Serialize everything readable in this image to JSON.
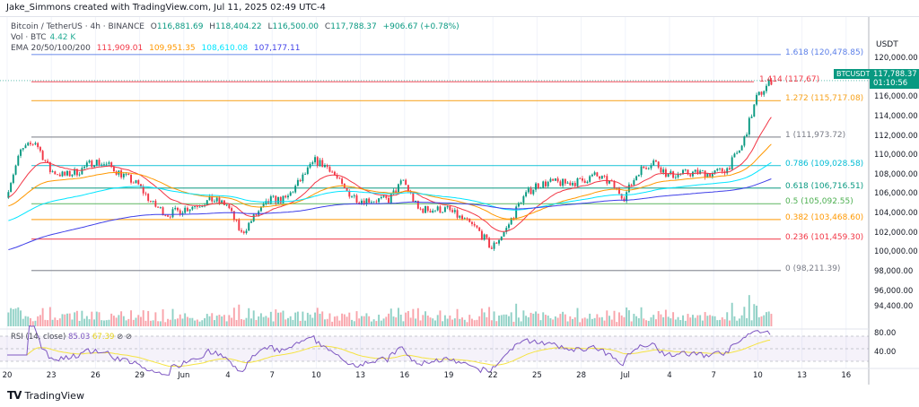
{
  "credit": "Jake_Simmons created with TradingView.com, Jul 11, 2025 02:49 UTC-4",
  "legend": {
    "symbol": "Bitcoin / TetherUS · 4h · BINANCE",
    "open_label": "O",
    "open": "116,881.69",
    "high_label": "H",
    "high": "118,404.22",
    "low_label": "L",
    "low": "116,500.00",
    "close_label": "C",
    "close": "117,788.37",
    "change": "+906.67 (+0.78%)",
    "vol_label": "Vol · BTC",
    "vol": "4.42 K",
    "ema_label": "EMA 20/50/100/200",
    "ema20": "111,909.01",
    "ema50": "109,951.35",
    "ema100": "108,610.08",
    "ema200": "107,177.11"
  },
  "axis_currency": "USDT",
  "price_tag": {
    "symbol": "BTCUSDT",
    "price": "117,788.37",
    "countdown": "01:10:56"
  },
  "rsi": {
    "label": "RSI (14, close)",
    "value": "85.03",
    "ma": "67.39",
    "levels": [
      "80.00",
      "40.00"
    ]
  },
  "footer": "TradingView",
  "colors": {
    "up": "#089981",
    "down": "#f23645",
    "ema20": "#f23645",
    "ema50": "#ff9800",
    "ema100": "#00e5ff",
    "ema200": "#3f3fe8",
    "rsi": "#7e57c2",
    "rsi_ma": "#f5e342"
  },
  "chart_data": {
    "type": "candlestick",
    "interval": "4h",
    "price_ticks": [
      "120,000.00",
      "116,000.00",
      "114,000.00",
      "112,000.00",
      "110,000.00",
      "108,000.00",
      "106,000.00",
      "104,000.00",
      "102,000.00",
      "100,000.00",
      "98,000.00",
      "96,000.00",
      "94,400.00"
    ],
    "date_ticks": [
      "20",
      "23",
      "26",
      "29",
      "Jun",
      "4",
      "7",
      "10",
      "13",
      "16",
      "19",
      "22",
      "25",
      "28",
      "Jul",
      "4",
      "7",
      "10",
      "13",
      "16"
    ],
    "daily_close_approx": [
      106000,
      110500,
      111500,
      108500,
      108000,
      108500,
      109500,
      109000,
      108000,
      107000,
      105000,
      104000,
      104500,
      105000,
      105500,
      105000,
      102000,
      104000,
      105500,
      105500,
      107500,
      109500,
      108800,
      106500,
      105500,
      105500,
      105500,
      107500,
      104500,
      104500,
      104500,
      103500,
      102500,
      100500,
      102500,
      105500,
      107000,
      107300,
      107200,
      107400,
      108000,
      107300,
      105800,
      108500,
      109500,
      108000,
      108200,
      108300,
      108200,
      108700,
      111000,
      116000,
      117788
    ],
    "fib_levels": [
      {
        "ratio": "1.618",
        "price": "120,478.85",
        "color": "#5b7fe8"
      },
      {
        "ratio": "1.414",
        "price": "117,67",
        "color": "#f23645"
      },
      {
        "ratio": "1.272",
        "price": "115,717.08",
        "color": "#f7a21b"
      },
      {
        "ratio": "1",
        "price": "111,973.72",
        "color": "#787b86"
      },
      {
        "ratio": "0.786",
        "price": "109,028.58",
        "color": "#00bcd4"
      },
      {
        "ratio": "0.618",
        "price": "106,716.51",
        "color": "#089981"
      },
      {
        "ratio": "0.5",
        "price": "105,092.55",
        "color": "#4caf50"
      },
      {
        "ratio": "0.382",
        "price": "103,468.60",
        "color": "#ff9800"
      },
      {
        "ratio": "0.236",
        "price": "101,459.30",
        "color": "#f23645"
      },
      {
        "ratio": "0",
        "price": "98,211.39",
        "color": "#787b86"
      }
    ]
  }
}
